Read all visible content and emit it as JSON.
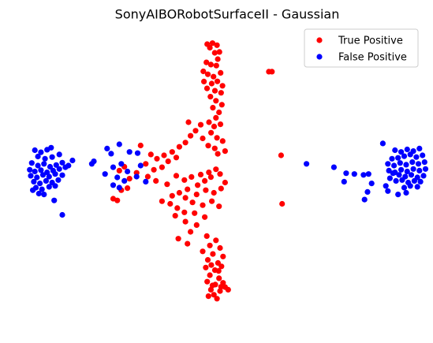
{
  "chart_data": {
    "type": "scatter",
    "title": "SonyAIBORobotSurfaceII - Gaussian",
    "xlabel": "",
    "ylabel": "",
    "axes_visible": false,
    "grid": false,
    "xlim": [
      -100,
      100
    ],
    "ylim": [
      -80,
      80
    ],
    "legend_position": "top-right",
    "series": [
      {
        "name": "True Positive",
        "color": "#ff0000",
        "points": [
          [
            -9.8,
            74.9
          ],
          [
            -7.2,
            75.5
          ],
          [
            -5.0,
            74.3
          ],
          [
            -8.5,
            72.8
          ],
          [
            -3.8,
            70.3
          ],
          [
            -6.1,
            69.8
          ],
          [
            -4.6,
            66.1
          ],
          [
            -10.2,
            64.2
          ],
          [
            -8.0,
            62.9
          ],
          [
            -5.3,
            62.3
          ],
          [
            -11.7,
            58.9
          ],
          [
            -9.5,
            57.2
          ],
          [
            -6.7,
            55.8
          ],
          [
            -3.2,
            58.0
          ],
          [
            -11.4,
            52.9
          ],
          [
            -7.6,
            51.7
          ],
          [
            -4.8,
            53.0
          ],
          [
            -2.3,
            50.4
          ],
          [
            -9.9,
            48.9
          ],
          [
            -6.0,
            47.5
          ],
          [
            -3.0,
            46.3
          ],
          [
            -8.2,
            44.0
          ],
          [
            -5.5,
            41.6
          ],
          [
            -2.6,
            39.3
          ],
          [
            -7.0,
            37.5
          ],
          [
            -4.0,
            34.8
          ],
          [
            -5.5,
            31.6
          ],
          [
            -8.9,
            29.0
          ],
          [
            -6.4,
            26.5
          ],
          [
            -3.3,
            27.8
          ],
          [
            -7.9,
            22.8
          ],
          [
            -5.0,
            19.8
          ],
          [
            -2.2,
            17.9
          ],
          [
            -9.3,
            15.2
          ],
          [
            -6.1,
            13.6
          ],
          [
            -4.6,
            10.4
          ],
          [
            -1.0,
            12.0
          ],
          [
            -19.0,
            29.0
          ],
          [
            -13.0,
            27.5
          ],
          [
            -15.5,
            24.0
          ],
          [
            -18.0,
            21.0
          ],
          [
            -12.0,
            19.5
          ],
          [
            -20.5,
            17.0
          ],
          [
            -23.5,
            14.5
          ],
          [
            -27.0,
            11.5
          ],
          [
            -31.0,
            9.5
          ],
          [
            -25.0,
            8.2
          ],
          [
            -29.0,
            6.0
          ],
          [
            -34.5,
            7.5
          ],
          [
            -37.5,
            10.0
          ],
          [
            -42.5,
            15.3
          ],
          [
            -40.0,
            4.5
          ],
          [
            -32.0,
            2.5
          ],
          [
            -36.0,
            1.0
          ],
          [
            -44.5,
            -0.8
          ],
          [
            -50.5,
            2.8
          ],
          [
            -53.0,
            0.5
          ],
          [
            -48.0,
            -4.2
          ],
          [
            -49.0,
            -9.8
          ],
          [
            -52.0,
            -11.0
          ],
          [
            -39.0,
            -3.0
          ],
          [
            -35.0,
            -5.5
          ],
          [
            -29.5,
            -7.5
          ],
          [
            -25.0,
            -2.5
          ],
          [
            -21.0,
            -5.0
          ],
          [
            -17.5,
            -3.2
          ],
          [
            -13.0,
            -1.8
          ],
          [
            -9.0,
            -0.5
          ],
          [
            -5.5,
            1.3
          ],
          [
            -3.5,
            -1.5
          ],
          [
            -8.0,
            -3.3
          ],
          [
            -11.0,
            -5.5
          ],
          [
            -14.5,
            -8.0
          ],
          [
            -19.5,
            -10.5
          ],
          [
            -23.5,
            -12.5
          ],
          [
            -27.0,
            -14.3
          ],
          [
            -20.5,
            -15.5
          ],
          [
            -15.0,
            -13.5
          ],
          [
            -10.5,
            -11.0
          ],
          [
            -6.5,
            -12.5
          ],
          [
            -3.0,
            -10.0
          ],
          [
            -1.0,
            -6.5
          ],
          [
            -17.0,
            -18.2
          ],
          [
            -12.0,
            -19.8
          ],
          [
            -7.5,
            -17.5
          ],
          [
            -4.0,
            -20.5
          ],
          [
            -28.0,
            -19.0
          ],
          [
            -24.5,
            -21.5
          ],
          [
            -21.0,
            -24.0
          ],
          [
            -16.0,
            -24.5
          ],
          [
            -11.0,
            -26.8
          ],
          [
            -25.5,
            -26.0
          ],
          [
            -20.5,
            -29.5
          ],
          [
            -15.0,
            -31.5
          ],
          [
            -18.0,
            -35.5
          ],
          [
            -24.0,
            -39.5
          ],
          [
            -19.5,
            -42.5
          ],
          [
            -10.0,
            -38.0
          ],
          [
            -5.5,
            -40.5
          ],
          [
            -8.5,
            -43.5
          ],
          [
            -3.5,
            -45.0
          ],
          [
            -12.0,
            -47.0
          ],
          [
            -7.0,
            -48.5
          ],
          [
            -2.0,
            -50.0
          ],
          [
            -9.5,
            -52.0
          ],
          [
            -4.5,
            -53.8
          ],
          [
            -10.5,
            -56.5
          ],
          [
            -6.0,
            -58.0
          ],
          [
            -2.8,
            -55.8
          ],
          [
            -8.5,
            -61.0
          ],
          [
            -4.0,
            -62.8
          ],
          [
            -9.8,
            -64.8
          ],
          [
            -5.8,
            -66.5
          ],
          [
            -2.0,
            -65.5
          ],
          [
            -8.0,
            -69.5
          ],
          [
            -3.5,
            -70.3
          ],
          [
            -6.5,
            -72.5
          ],
          [
            -1.0,
            -68.0
          ],
          [
            -9.2,
            -73.3
          ],
          [
            -5.0,
            -74.8
          ],
          [
            -3.0,
            -67.8
          ],
          [
            -7.2,
            -67.0
          ],
          [
            0.5,
            -69.5
          ],
          [
            -4.2,
            -58.5
          ],
          [
            -7.8,
            -55.0
          ],
          [
            20.5,
            58.7
          ],
          [
            22.0,
            58.7
          ],
          [
            26.5,
            9.5
          ],
          [
            27.0,
            -19.0
          ],
          [
            -54.0,
            -17.0
          ],
          [
            -56.0,
            -16.0
          ],
          [
            -32.0,
            -17.5
          ]
        ]
      },
      {
        "name": "False Positive",
        "color": "#0000ff",
        "points": [
          [
            -94.5,
            12.5
          ],
          [
            -91.5,
            11.3
          ],
          [
            -88.5,
            12.8
          ],
          [
            -86.5,
            14.0
          ],
          [
            -93.0,
            8.8
          ],
          [
            -89.5,
            7.5
          ],
          [
            -86.0,
            8.5
          ],
          [
            -82.5,
            10.0
          ],
          [
            -96.0,
            5.0
          ],
          [
            -93.0,
            3.5
          ],
          [
            -90.0,
            4.5
          ],
          [
            -87.0,
            2.8
          ],
          [
            -84.0,
            3.8
          ],
          [
            -81.0,
            5.2
          ],
          [
            -97.0,
            1.0
          ],
          [
            -94.5,
            0.0
          ],
          [
            -91.5,
            0.8
          ],
          [
            -88.5,
            -0.5
          ],
          [
            -85.5,
            0.5
          ],
          [
            -82.5,
            1.5
          ],
          [
            -79.5,
            2.5
          ],
          [
            -96.5,
            -2.5
          ],
          [
            -93.5,
            -3.5
          ],
          [
            -90.5,
            -2.0
          ],
          [
            -87.5,
            -3.0
          ],
          [
            -84.5,
            -1.5
          ],
          [
            -81.0,
            -2.2
          ],
          [
            -95.0,
            -6.0
          ],
          [
            -92.0,
            -7.0
          ],
          [
            -89.0,
            -5.5
          ],
          [
            -86.0,
            -6.5
          ],
          [
            -83.0,
            -5.0
          ],
          [
            -94.0,
            -9.5
          ],
          [
            -91.0,
            -10.5
          ],
          [
            -87.5,
            -9.0
          ],
          [
            -84.5,
            -8.5
          ],
          [
            -92.5,
            -13.0
          ],
          [
            -95.5,
            -11.0
          ],
          [
            -90.0,
            -13.5
          ],
          [
            -78.0,
            3.5
          ],
          [
            -76.0,
            6.5
          ],
          [
            -85.0,
            -17.0
          ],
          [
            -66.5,
            4.5
          ],
          [
            -65.5,
            6.0
          ],
          [
            -81.0,
            -25.5
          ],
          [
            -59.0,
            13.5
          ],
          [
            -53.0,
            16.0
          ],
          [
            -57.0,
            10.5
          ],
          [
            -48.0,
            11.5
          ],
          [
            -44.0,
            10.8
          ],
          [
            -56.0,
            2.5
          ],
          [
            -52.0,
            4.5
          ],
          [
            -54.0,
            -3.5
          ],
          [
            -49.0,
            0.0
          ],
          [
            -50.5,
            -5.5
          ],
          [
            -56.0,
            -8.0
          ],
          [
            -53.0,
            -9.5
          ],
          [
            -44.5,
            -3.0
          ],
          [
            -42.5,
            3.5
          ],
          [
            -40.0,
            -6.0
          ],
          [
            -60.0,
            -1.5
          ],
          [
            94.5,
            13.5
          ],
          [
            91.5,
            12.0
          ],
          [
            88.5,
            13.0
          ],
          [
            85.5,
            11.5
          ],
          [
            82.5,
            12.5
          ],
          [
            96.0,
            9.5
          ],
          [
            93.0,
            8.5
          ],
          [
            90.0,
            10.0
          ],
          [
            87.0,
            9.0
          ],
          [
            84.0,
            8.0
          ],
          [
            81.0,
            7.5
          ],
          [
            97.0,
            5.5
          ],
          [
            94.0,
            4.5
          ],
          [
            91.0,
            5.5
          ],
          [
            88.0,
            4.0
          ],
          [
            85.0,
            5.0
          ],
          [
            82.0,
            3.5
          ],
          [
            79.0,
            4.5
          ],
          [
            97.5,
            1.5
          ],
          [
            94.5,
            0.5
          ],
          [
            91.5,
            1.5
          ],
          [
            88.5,
            0.0
          ],
          [
            85.5,
            1.0
          ],
          [
            82.5,
            -0.5
          ],
          [
            79.5,
            0.5
          ],
          [
            96.5,
            -2.5
          ],
          [
            93.5,
            -3.5
          ],
          [
            90.5,
            -2.0
          ],
          [
            87.5,
            -3.0
          ],
          [
            84.5,
            -2.0
          ],
          [
            81.5,
            -1.0
          ],
          [
            95.0,
            -6.0
          ],
          [
            92.0,
            -5.5
          ],
          [
            89.0,
            -6.5
          ],
          [
            86.0,
            -5.0
          ],
          [
            83.0,
            -5.5
          ],
          [
            93.5,
            -9.0
          ],
          [
            90.0,
            -8.5
          ],
          [
            87.0,
            -9.5
          ],
          [
            76.5,
            16.5
          ],
          [
            80.0,
            -4.0
          ],
          [
            78.0,
            -8.5
          ],
          [
            88.0,
            -12.5
          ],
          [
            84.0,
            -13.5
          ],
          [
            79.0,
            -11.5
          ],
          [
            39.0,
            4.5
          ],
          [
            52.5,
            2.5
          ],
          [
            58.5,
            -1.0
          ],
          [
            57.5,
            -6.0
          ],
          [
            62.5,
            -1.5
          ],
          [
            67.0,
            -2.0
          ],
          [
            69.5,
            -1.5
          ],
          [
            71.0,
            -7.0
          ],
          [
            69.0,
            -12.0
          ],
          [
            67.5,
            -16.5
          ]
        ]
      }
    ]
  }
}
